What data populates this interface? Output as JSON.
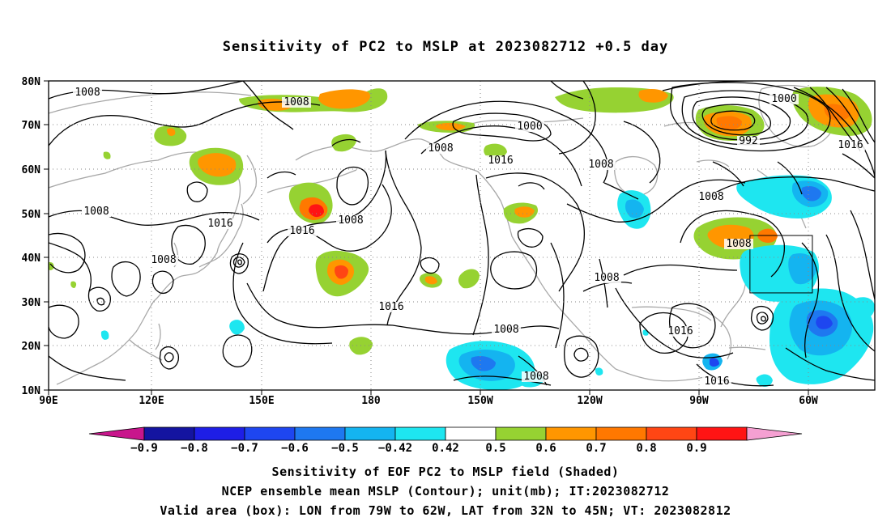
{
  "title": "Sensitivity of PC2 to MSLP at 2023082712 +0.5 day",
  "lat_labels": [
    "80N",
    "70N",
    "60N",
    "50N",
    "40N",
    "30N",
    "20N",
    "10N"
  ],
  "lon_labels": [
    "90E",
    "120E",
    "150E",
    "180",
    "150W",
    "120W",
    "90W",
    "60W"
  ],
  "contour_labels": [
    "1008",
    "1008",
    "1008",
    "1016",
    "1016",
    "1008",
    "1000",
    "1008",
    "1016",
    "1008",
    "1016",
    "1008",
    "1000",
    "992",
    "1016",
    "1008",
    "1016",
    "1008",
    "1016",
    "1016",
    "1008",
    "1008",
    "1008"
  ],
  "valid_box": {
    "lon_from": -79,
    "lon_to": -62,
    "lat_from": 32,
    "lat_to": 45
  },
  "colorbar": {
    "labels": [
      "−0.9",
      "−0.8",
      "−0.7",
      "−0.6",
      "−0.5",
      "−0.42",
      "0.42",
      "0.5",
      "0.6",
      "0.7",
      "0.8",
      "0.9"
    ],
    "colors": [
      "#c8168c",
      "#1414a0",
      "#1e1ee6",
      "#1e46f0",
      "#1e78f0",
      "#14b4f0",
      "#1ee6f0",
      "#ffffff",
      "#96d232",
      "#ff9600",
      "#ff7800",
      "#ff4614",
      "#ff1414",
      "#f5a0d2"
    ]
  },
  "captions": [
    "Sensitivity of EOF PC2 to MSLP field (Shaded)",
    "NCEP ensemble mean MSLP (Contour); unit(mb); IT:2023082712",
    "Valid area (box): LON from 79W to 62W, LAT from 32N to 45N; VT: 2023082812"
  ]
}
